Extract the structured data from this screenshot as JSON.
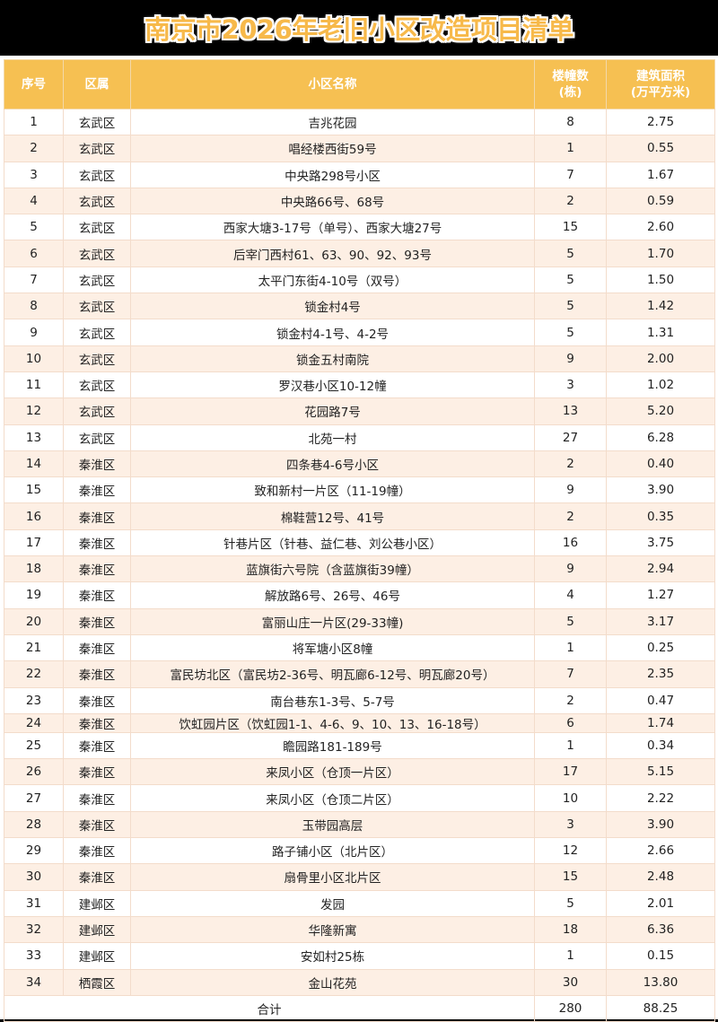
{
  "title": "南京市2026年老旧小区改造项目清单",
  "colors": {
    "header": "#f6c052",
    "title": "#f7b94a",
    "alt_row": "#fdefe4"
  },
  "columns": [
    "序号",
    "区属",
    "小区名称",
    "楼幢数\n(栋)",
    "建筑面积\n(万平方米)"
  ],
  "columns_split": [
    [
      "序号"
    ],
    [
      "区属"
    ],
    [
      "小区名称"
    ],
    [
      "楼幢数",
      "(栋)"
    ],
    [
      "建筑面积",
      "(万平方米)"
    ]
  ],
  "rows": [
    [
      "1",
      "玄武区",
      "吉兆花园",
      "8",
      "2.75"
    ],
    [
      "2",
      "玄武区",
      "唱经楼西街59号",
      "1",
      "0.55"
    ],
    [
      "3",
      "玄武区",
      "中央路298号小区",
      "7",
      "1.67"
    ],
    [
      "4",
      "玄武区",
      "中央路66号、68号",
      "2",
      "0.59"
    ],
    [
      "5",
      "玄武区",
      "西家大塘3-17号（单号）、西家大塘27号",
      "15",
      "2.60"
    ],
    [
      "6",
      "玄武区",
      "后宰门西村61、63、90、92、93号",
      "5",
      "1.70"
    ],
    [
      "7",
      "玄武区",
      "太平门东街4-10号（双号）",
      "5",
      "1.50"
    ],
    [
      "8",
      "玄武区",
      "锁金村4号",
      "5",
      "1.42"
    ],
    [
      "9",
      "玄武区",
      "锁金村4-1号、4-2号",
      "5",
      "1.31"
    ],
    [
      "10",
      "玄武区",
      "锁金五村南院",
      "9",
      "2.00"
    ],
    [
      "11",
      "玄武区",
      "罗汉巷小区10-12幢",
      "3",
      "1.02"
    ],
    [
      "12",
      "玄武区",
      "花园路7号",
      "13",
      "5.20"
    ],
    [
      "13",
      "玄武区",
      "北苑一村",
      "27",
      "6.28"
    ],
    [
      "14",
      "秦淮区",
      "四条巷4-6号小区",
      "2",
      "0.40"
    ],
    [
      "15",
      "秦淮区",
      "致和新村一片区（11-19幢）",
      "9",
      "3.90"
    ],
    [
      "16",
      "秦淮区",
      "棉鞋营12号、41号",
      "2",
      "0.35"
    ],
    [
      "17",
      "秦淮区",
      "针巷片区（针巷、益仁巷、刘公巷小区）",
      "16",
      "3.75"
    ],
    [
      "18",
      "秦淮区",
      "蓝旗街六号院（含蓝旗街39幢）",
      "9",
      "2.94"
    ],
    [
      "19",
      "秦淮区",
      "解放路6号、26号、46号",
      "4",
      "1.27"
    ],
    [
      "20",
      "秦淮区",
      "富丽山庄一片区(29-33幢)",
      "5",
      "3.17"
    ],
    [
      "21",
      "秦淮区",
      "将军塘小区8幢",
      "1",
      "0.25"
    ],
    [
      "22",
      "秦淮区",
      "富民坊北区（富民坊2-36号、明瓦廊6-12号、明瓦廊20号）",
      "7",
      "2.35"
    ],
    [
      "23",
      "秦淮区",
      "南台巷东1-3号、5-7号",
      "2",
      "0.47"
    ],
    [
      "24",
      "秦淮区",
      "饮虹园片区（饮虹园1-1、4-6、9、10、13、16-18号）",
      "6",
      "1.74"
    ],
    [
      "25",
      "秦淮区",
      "瞻园路181-189号",
      "1",
      "0.34"
    ],
    [
      "26",
      "秦淮区",
      "来凤小区（仓顶一片区）",
      "17",
      "5.15"
    ],
    [
      "27",
      "秦淮区",
      "来凤小区（仓顶二片区）",
      "10",
      "2.22"
    ],
    [
      "28",
      "秦淮区",
      "玉带园高层",
      "3",
      "3.90"
    ],
    [
      "29",
      "秦淮区",
      "路子铺小区（北片区）",
      "12",
      "2.66"
    ],
    [
      "30",
      "秦淮区",
      "扇骨里小区北片区",
      "15",
      "2.48"
    ],
    [
      "31",
      "建邺区",
      "发园",
      "5",
      "2.01"
    ],
    [
      "32",
      "建邺区",
      "华隆新寓",
      "18",
      "6.36"
    ],
    [
      "33",
      "建邺区",
      "安如村25栋",
      "1",
      "0.15"
    ],
    [
      "34",
      "栖霞区",
      "金山花苑",
      "30",
      "13.80"
    ]
  ],
  "total": {
    "label": "合计",
    "buildings": "280",
    "area": "88.25"
  }
}
